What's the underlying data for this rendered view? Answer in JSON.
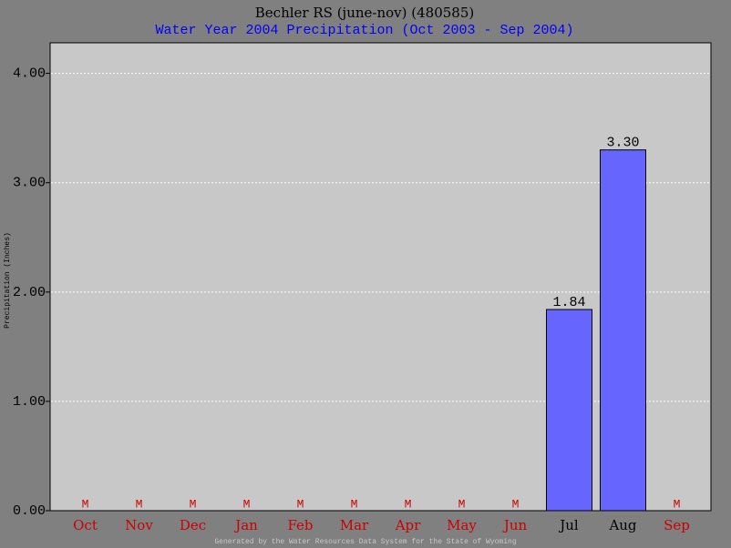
{
  "chart_data": {
    "type": "bar",
    "title": "Bechler RS (june-nov) (480585)",
    "subtitle": "Water Year 2004 Precipitation (Oct 2003 - Sep 2004)",
    "y_label": "Precipitation (Inches)",
    "footer": "Generated by the Water Resources Data System for the State of Wyoming",
    "categories": [
      "Oct",
      "Nov",
      "Dec",
      "Jan",
      "Feb",
      "Mar",
      "Apr",
      "May",
      "Jun",
      "Jul",
      "Aug",
      "Sep"
    ],
    "values": [
      null,
      null,
      null,
      null,
      null,
      null,
      null,
      null,
      null,
      1.84,
      3.3,
      null
    ],
    "value_labels": [
      "M",
      "M",
      "M",
      "M",
      "M",
      "M",
      "M",
      "M",
      "M",
      "1.84",
      "3.30",
      "M"
    ],
    "color": "#6666ff",
    "missing_color": "#cc0000",
    "present_color": "#000000",
    "ylim": [
      0,
      4.28
    ],
    "yticks": [
      {
        "value": 0,
        "label": "0.00"
      },
      {
        "value": 1,
        "label": "1.00"
      },
      {
        "value": 2,
        "label": "2.00"
      },
      {
        "value": 3,
        "label": "3.00"
      },
      {
        "value": 4,
        "label": "4.00"
      }
    ],
    "grid": true
  }
}
